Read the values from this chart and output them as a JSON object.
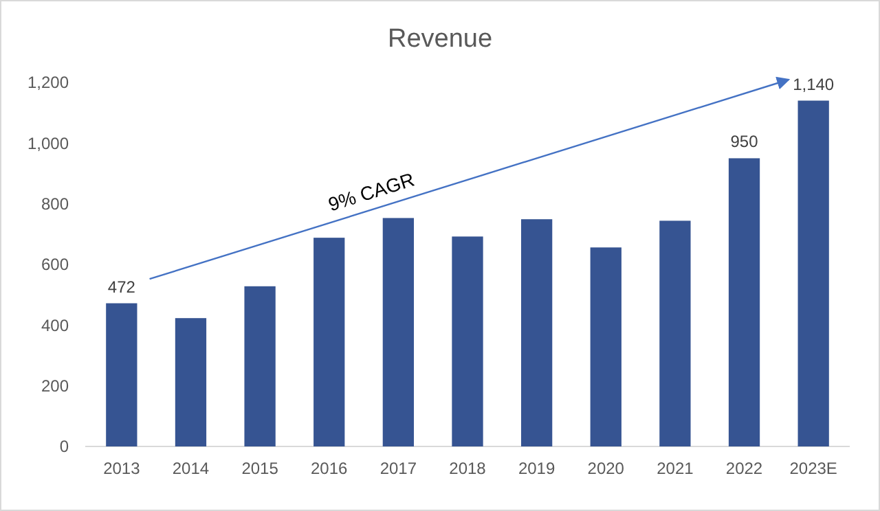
{
  "chart_data": {
    "type": "bar",
    "title": "Revenue",
    "categories": [
      "2013",
      "2014",
      "2015",
      "2016",
      "2017",
      "2018",
      "2019",
      "2020",
      "2021",
      "2022",
      "2023E"
    ],
    "values": [
      472,
      423,
      528,
      688,
      753,
      692,
      749,
      656,
      744,
      950,
      1140
    ],
    "value_labels": [
      "472",
      null,
      null,
      null,
      null,
      null,
      null,
      null,
      null,
      "950",
      "1,140"
    ],
    "color": "#365492",
    "ylim": [
      0,
      1200
    ],
    "yticks": [
      {
        "value": 0,
        "label": "0"
      },
      {
        "value": 200,
        "label": "200"
      },
      {
        "value": 400,
        "label": "400"
      },
      {
        "value": 600,
        "label": "600"
      },
      {
        "value": 800,
        "label": "800"
      },
      {
        "value": 1000,
        "label": "1,000"
      },
      {
        "value": 1200,
        "label": "1,200"
      }
    ],
    "grid": false,
    "annotations": [
      "9% CAGR"
    ]
  }
}
